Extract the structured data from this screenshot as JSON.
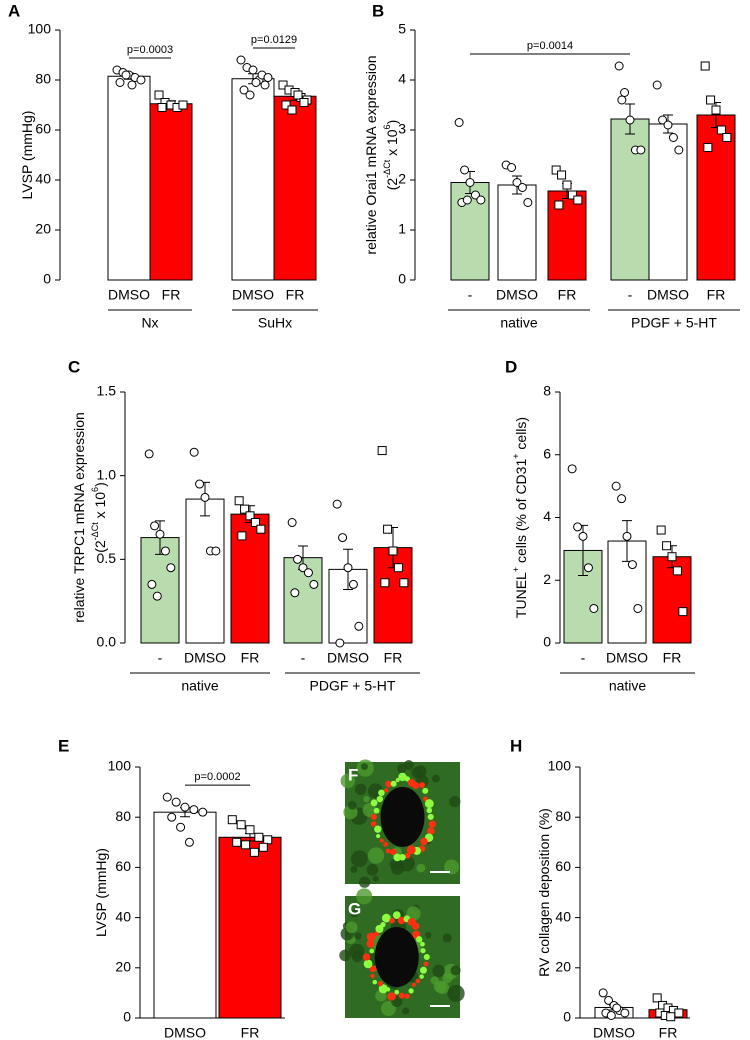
{
  "chart_data": [
    {
      "type": "bar",
      "panel": "A",
      "ylabel": [
        [
          {
            "text": "LVSP (mmHg)"
          }
        ]
      ],
      "ylim": [
        0,
        100
      ],
      "yticks": [
        0,
        20,
        40,
        60,
        80,
        100
      ],
      "categories": [
        "DMSO",
        "FR",
        "DMSO",
        "FR"
      ],
      "groups": [
        "Nx",
        "SuHx"
      ],
      "series": [
        {
          "values": [
            81.5,
            70.5,
            80.5,
            73.5
          ],
          "errors": [
            1.2,
            1.2,
            2,
            1.6
          ],
          "colors": [
            "#ffffff",
            "#ff0000",
            "#ffffff",
            "#ff0000"
          ],
          "markers": [
            "circle",
            "square",
            "circle",
            "square"
          ],
          "points": [
            [
              84,
              83,
              82,
              81,
              80,
              79,
              82,
              78
            ],
            [
              74,
              71,
              70,
              69,
              70,
              69
            ],
            [
              88,
              85,
              84,
              80,
              78,
              76,
              74,
              79,
              82,
              81
            ],
            [
              78,
              76,
              75,
              73,
              72,
              70,
              68,
              74,
              71
            ]
          ]
        }
      ],
      "annotations": [
        {
          "text": "p=0.0003",
          "between": [
            0,
            1
          ]
        },
        {
          "text": "p=0.0129",
          "between": [
            2,
            3
          ]
        }
      ]
    },
    {
      "type": "bar",
      "panel": "B",
      "ylabel": [
        [
          {
            "text": "relative Orai1 mRNA expression"
          }
        ],
        [
          {
            "text": "(2"
          },
          {
            "text": "-ΔCt",
            "sup": true
          },
          {
            "text": " x 10"
          },
          {
            "text": "6",
            "sup": true
          },
          {
            "text": ")"
          }
        ]
      ],
      "ylim": [
        0,
        5
      ],
      "yticks": [
        0,
        1,
        2,
        3,
        4,
        5
      ],
      "categories": [
        "-",
        "DMSO",
        "FR",
        "-",
        "DMSO",
        "FR"
      ],
      "groups": [
        "native",
        "PDGF + 5-HT"
      ],
      "series": [
        {
          "values": [
            1.95,
            1.9,
            1.78,
            3.22,
            3.12,
            3.3
          ],
          "errors": [
            0.22,
            0.18,
            0.15,
            0.3,
            0.18,
            0.25
          ],
          "colors": [
            "#b8dcae",
            "#ffffff",
            "#ff0000",
            "#b8dcae",
            "#ffffff",
            "#ff0000"
          ],
          "markers": [
            "circle",
            "circle",
            "square",
            "circle",
            "circle",
            "square"
          ],
          "points": [
            [
              3.15,
              2.2,
              1.95,
              1.7,
              1.6,
              1.55,
              1.6
            ],
            [
              2.3,
              2.25,
              1.95,
              1.85,
              1.55
            ],
            [
              2.2,
              2.1,
              1.9,
              1.7,
              1.6,
              1.5
            ],
            [
              4.28,
              3.75,
              3.2,
              2.6,
              2.6,
              3.6
            ],
            [
              3.9,
              3.2,
              3.1,
              2.85,
              2.6
            ],
            [
              4.28,
              3.6,
              3.4,
              3.0,
              2.85,
              2.65
            ]
          ]
        }
      ],
      "annotations": [
        {
          "text": "p=0.0014",
          "between": [
            0,
            3
          ]
        }
      ]
    },
    {
      "type": "bar",
      "panel": "C",
      "ylabel": [
        [
          {
            "text": "relative TRPC1 mRNA expression"
          }
        ],
        [
          {
            "text": "(2"
          },
          {
            "text": "-ΔCt",
            "sup": true
          },
          {
            "text": " x 10"
          },
          {
            "text": "6",
            "sup": true
          },
          {
            "text": ")"
          }
        ]
      ],
      "ylim": [
        0,
        1.5
      ],
      "yticks": [
        {
          "value": 0,
          "label": "0.0"
        },
        0.5,
        {
          "value": 1,
          "label": "1.0"
        },
        1.5
      ],
      "categories": [
        "-",
        "DMSO",
        "FR",
        "-",
        "DMSO",
        "FR"
      ],
      "groups": [
        "native",
        "PDGF + 5-HT"
      ],
      "series": [
        {
          "values": [
            0.63,
            0.86,
            0.77,
            0.51,
            0.44,
            0.57
          ],
          "errors": [
            0.1,
            0.1,
            0.05,
            0.07,
            0.12,
            0.12
          ],
          "colors": [
            "#b8dcae",
            "#ffffff",
            "#ff0000",
            "#b8dcae",
            "#ffffff",
            "#ff0000"
          ],
          "markers": [
            "circle",
            "circle",
            "square",
            "circle",
            "circle",
            "square"
          ],
          "points": [
            [
              1.13,
              0.7,
              0.65,
              0.55,
              0.45,
              0.35,
              0.28
            ],
            [
              1.14,
              0.95,
              0.87,
              0.55,
              0.55
            ],
            [
              0.85,
              0.8,
              0.76,
              0.72,
              0.68,
              0.64
            ],
            [
              0.72,
              0.5,
              0.45,
              0.42,
              0.35,
              0.3
            ],
            [
              0.83,
              0.63,
              0.45,
              0.35,
              0.1,
              0.0
            ],
            [
              1.15,
              0.68,
              0.55,
              0.45,
              0.36,
              0.36
            ]
          ]
        }
      ]
    },
    {
      "type": "bar",
      "panel": "D",
      "ylabel": [
        [
          {
            "text": "TUNEL"
          },
          {
            "text": "+",
            "sup": true
          },
          {
            "text": " cells (% of CD31"
          },
          {
            "text": "+",
            "sup": true
          },
          {
            "text": " cells)"
          }
        ]
      ],
      "ylim": [
        0,
        8
      ],
      "yticks": [
        0,
        2,
        4,
        6,
        8
      ],
      "categories": [
        "-",
        "DMSO",
        "FR"
      ],
      "groups": [
        "native"
      ],
      "series": [
        {
          "values": [
            2.95,
            3.25,
            2.75
          ],
          "errors": [
            0.8,
            0.65,
            0.35
          ],
          "colors": [
            "#b8dcae",
            "#ffffff",
            "#ff0000"
          ],
          "markers": [
            "circle",
            "circle",
            "square"
          ],
          "points": [
            [
              5.55,
              3.7,
              3.4,
              2.4,
              1.1
            ],
            [
              5.0,
              4.6,
              3.4,
              2.5,
              1.1
            ],
            [
              3.6,
              3.1,
              2.75,
              2.3,
              1.0
            ]
          ]
        }
      ]
    },
    {
      "type": "bar",
      "panel": "E",
      "ylabel": [
        [
          {
            "text": "LVSP (mmHg)"
          }
        ]
      ],
      "ylim": [
        0,
        100
      ],
      "yticks": [
        0,
        20,
        40,
        60,
        80,
        100
      ],
      "x_axis_line": true,
      "categories": [
        "DMSO",
        "FR"
      ],
      "series": [
        {
          "values": [
            82,
            72
          ],
          "errors": [
            1.8,
            1.5
          ],
          "colors": [
            "#ffffff",
            "#ff0000"
          ],
          "markers": [
            "circle",
            "square"
          ],
          "points": [
            [
              88,
              86,
              84,
              83,
              82,
              80,
              76,
              70
            ],
            [
              79,
              77,
              75,
              72,
              71,
              70,
              69,
              66,
              68
            ]
          ]
        }
      ],
      "annotations": [
        {
          "text": "p=0.0002",
          "between": [
            0,
            1
          ]
        }
      ]
    },
    {
      "type": "bar",
      "panel": "H",
      "ylabel": [
        [
          {
            "text": "RV collagen deposition (%)"
          }
        ]
      ],
      "ylim": [
        0,
        100
      ],
      "yticks": [
        0,
        20,
        40,
        60,
        80,
        100
      ],
      "x_axis_line": true,
      "categories": [
        "DMSO",
        "FR"
      ],
      "series": [
        {
          "values": [
            4.2,
            3.3
          ],
          "errors": [
            1,
            0.8
          ],
          "colors": [
            "#ffffff",
            "#ff0000"
          ],
          "markers": [
            "circle",
            "square"
          ],
          "points": [
            [
              10,
              7,
              5,
              3,
              2,
              2,
              1,
              4
            ],
            [
              8,
              5,
              4,
              3,
              2,
              2,
              1,
              0.5
            ]
          ]
        }
      ]
    }
  ],
  "images": [
    {
      "label": "F"
    },
    {
      "label": "G"
    }
  ]
}
